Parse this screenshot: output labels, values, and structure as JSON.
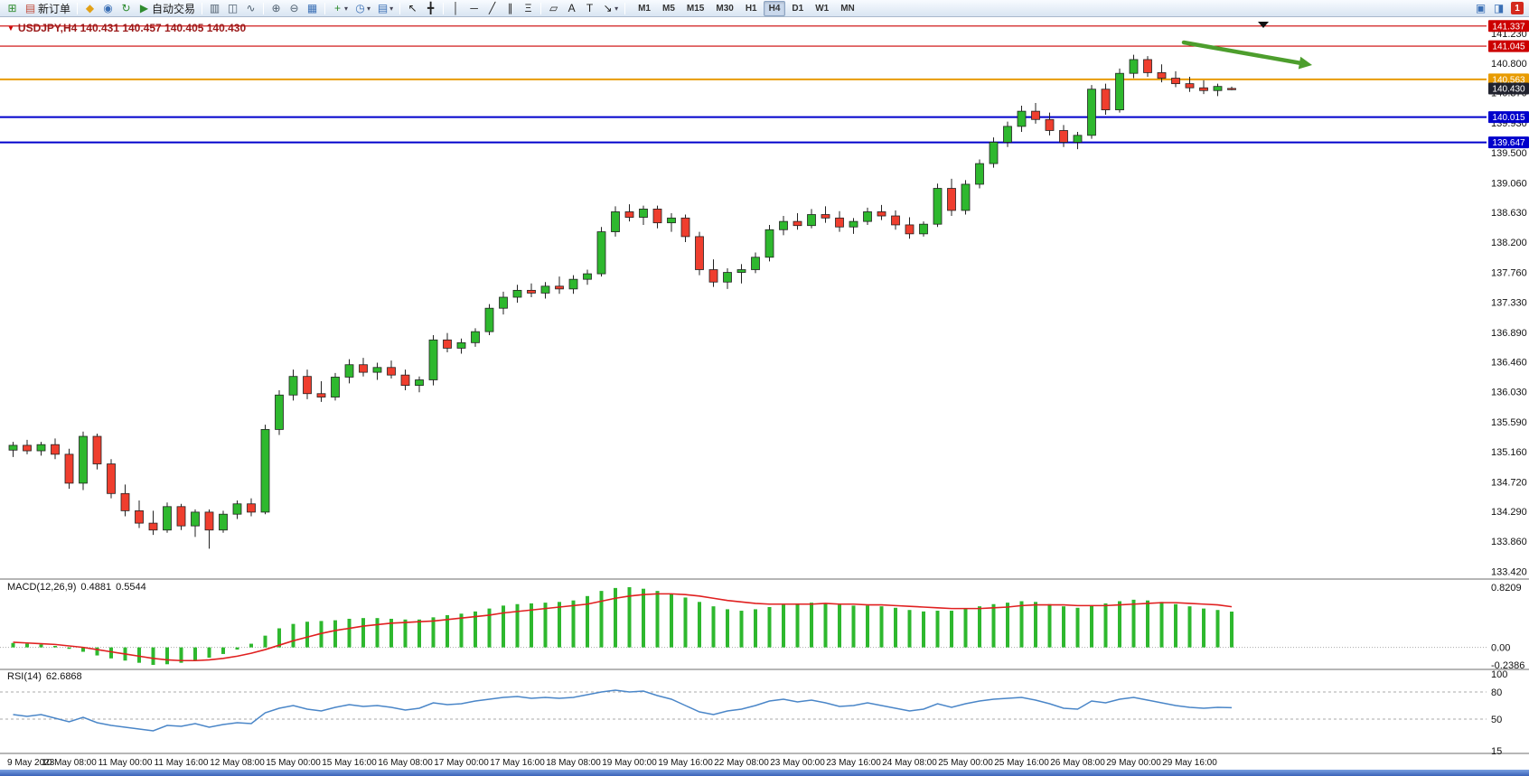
{
  "toolbar": {
    "dropdown_glyph": "▾",
    "items": [
      {
        "t": "ico",
        "name": "new-chart-button",
        "icon": "new-chart-icon",
        "glyph": "⊞",
        "color": "#2e8b2e"
      },
      {
        "t": "btn",
        "name": "new-order-button",
        "icon": "new-order-icon",
        "glyph": "▤",
        "color": "#c04a3a",
        "label": "新订单"
      },
      {
        "t": "sep"
      },
      {
        "t": "ico",
        "name": "metaeditor-button",
        "icon": "metaeditor-icon",
        "glyph": "◆",
        "color": "#e2a117"
      },
      {
        "t": "ico",
        "name": "navigator-button",
        "icon": "navigator-icon",
        "glyph": "◉",
        "color": "#3a6fb5"
      },
      {
        "t": "ico",
        "name": "refresh-button",
        "icon": "refresh-icon",
        "glyph": "↻",
        "color": "#2e8b2e"
      },
      {
        "t": "btn",
        "name": "autotrading-button",
        "icon": "autotrading-icon",
        "glyph": "▶",
        "color": "#2e8b2e",
        "label": "自动交易"
      },
      {
        "t": "sep"
      },
      {
        "t": "ico",
        "name": "bar-chart-button",
        "icon": "bar-chart-icon",
        "glyph": "▥",
        "color": "#50606f"
      },
      {
        "t": "ico",
        "name": "candlestick-chart-button",
        "icon": "candlestick-chart-icon",
        "glyph": "◫",
        "color": "#50606f"
      },
      {
        "t": "ico",
        "name": "line-chart-button",
        "icon": "line-chart-icon",
        "glyph": "∿",
        "color": "#50606f"
      },
      {
        "t": "sep"
      },
      {
        "t": "ico",
        "name": "zoom-in-button",
        "icon": "zoom-in-icon",
        "glyph": "⊕",
        "color": "#50606f"
      },
      {
        "t": "ico",
        "name": "zoom-out-button",
        "icon": "zoom-out-icon",
        "glyph": "⊖",
        "color": "#50606f"
      },
      {
        "t": "ico",
        "name": "tile-windows-button",
        "icon": "tile-windows-icon",
        "glyph": "▦",
        "color": "#3a6fb5"
      },
      {
        "t": "sep"
      },
      {
        "t": "drop",
        "name": "indicators-button",
        "icon": "indicators-icon",
        "glyph": "+",
        "color": "#2e8b2e"
      },
      {
        "t": "drop",
        "name": "periods-button",
        "icon": "clock-icon",
        "glyph": "◷",
        "color": "#3a6fb5"
      },
      {
        "t": "drop",
        "name": "templates-button",
        "icon": "template-icon",
        "glyph": "▤",
        "color": "#3a6fb5"
      },
      {
        "t": "sep"
      },
      {
        "t": "ico",
        "name": "cursor-button",
        "icon": "cursor-icon",
        "glyph": "↖",
        "color": "#222222"
      },
      {
        "t": "ico",
        "name": "crosshair-button",
        "icon": "crosshair-icon",
        "glyph": "╋",
        "color": "#222222"
      },
      {
        "t": "sep"
      },
      {
        "t": "ico",
        "name": "vertical-line-button",
        "icon": "vertical-line-icon",
        "glyph": "│",
        "color": "#222222"
      },
      {
        "t": "ico",
        "name": "horizontal-line-button",
        "icon": "horizontal-line-icon",
        "glyph": "─",
        "color": "#222222"
      },
      {
        "t": "ico",
        "name": "trendline-button",
        "icon": "trendline-icon",
        "glyph": "╱",
        "color": "#222222"
      },
      {
        "t": "ico",
        "name": "channel-button",
        "icon": "channel-icon",
        "glyph": "∥",
        "color": "#222222"
      },
      {
        "t": "ico",
        "name": "fibonacci-button",
        "icon": "fibonacci-icon",
        "glyph": "Ξ",
        "color": "#222222"
      },
      {
        "t": "sep"
      },
      {
        "t": "ico",
        "name": "shapes-button",
        "icon": "shapes-icon",
        "glyph": "▱",
        "color": "#222222"
      },
      {
        "t": "ico",
        "name": "text-button",
        "icon": "text-icon",
        "glyph": "A",
        "color": "#222222"
      },
      {
        "t": "ico",
        "name": "text-label-button",
        "icon": "text-label-icon",
        "glyph": "T",
        "color": "#222222"
      },
      {
        "t": "drop",
        "name": "arrows-button",
        "icon": "arrow-tool-icon",
        "glyph": "↘",
        "color": "#222222"
      },
      {
        "t": "sep"
      }
    ],
    "timeframes": [
      "M1",
      "M5",
      "M15",
      "M30",
      "H1",
      "H4",
      "D1",
      "W1",
      "MN"
    ],
    "active_timeframe": "H4",
    "right_items": [
      {
        "name": "charts-toggle-button",
        "icon": "charts-icon",
        "glyph": "▣",
        "color": "#3a6fb5"
      },
      {
        "name": "window-list-button",
        "icon": "window-icon",
        "glyph": "◨",
        "color": "#3a6fb5"
      }
    ],
    "badge_count": "1"
  },
  "chart": {
    "marker_glyph": "▼",
    "title": "USDJPY,H4 140.431 140.457 140.405 140.430",
    "symbol": "USDJPY",
    "period": "H4",
    "ohlc": {
      "open": "140.431",
      "high": "140.457",
      "low": "140.405",
      "close": "140.430"
    },
    "price_axis_labels": [
      "141.230",
      "140.800",
      "140.370",
      "139.930",
      "139.500",
      "139.060",
      "138.630",
      "138.200",
      "137.760",
      "137.330",
      "136.890",
      "136.460",
      "136.030",
      "135.590",
      "135.160",
      "134.720",
      "134.290",
      "133.860",
      "133.420"
    ],
    "levels": [
      {
        "name": "resistance-line-1",
        "price": 141.337,
        "label": "141.337",
        "color": "#cc0000",
        "width": 1.2,
        "line": true
      },
      {
        "name": "resistance-line-2",
        "price": 141.045,
        "label": "141.045",
        "color": "#cc0000",
        "width": 1.2,
        "line": true
      },
      {
        "name": "orange-level-line",
        "price": 140.563,
        "label": "140.563",
        "color": "#e89b00",
        "width": 2,
        "line": true
      },
      {
        "name": "bid-price",
        "price": 140.43,
        "label": "140.430",
        "color": "#20222e",
        "width": 0,
        "line": false
      },
      {
        "name": "support-line-1",
        "price": 140.015,
        "label": "140.015",
        "color": "#0000cc",
        "width": 2,
        "line": true
      },
      {
        "name": "support-line-2",
        "price": 139.647,
        "label": "139.647",
        "color": "#0000cc",
        "width": 2,
        "line": true
      }
    ],
    "time_axis_labels": [
      "9 May 2023",
      "10 May 08:00",
      "11 May 00:00",
      "11 May 16:00",
      "12 May 08:00",
      "15 May 00:00",
      "15 May 16:00",
      "16 May 08:00",
      "17 May 00:00",
      "17 May 16:00",
      "18 May 08:00",
      "19 May 00:00",
      "19 May 16:00",
      "22 May 08:00",
      "23 May 00:00",
      "23 May 16:00",
      "24 May 08:00",
      "25 May 00:00",
      "25 May 16:00",
      "26 May 08:00",
      "29 May 00:00",
      "29 May 16:00"
    ],
    "annotation": {
      "type": "arrow",
      "direction": "down-right",
      "color": "#4d9e2d"
    }
  },
  "macd_panel": {
    "label": "MACD(12,26,9)",
    "value_main": "0.4881",
    "value_signal": "0.5544",
    "axis_labels": [
      "0.8209",
      "0.00",
      "-0.2386"
    ]
  },
  "rsi_panel": {
    "label": "RSI(14)",
    "value": "62.6868",
    "axis_labels": [
      "100",
      "80",
      "50",
      "15"
    ],
    "level_lines": [
      80,
      50
    ]
  },
  "colors": {
    "bull": "#2eb82e",
    "bear": "#ef3e2e",
    "wick": "#222222",
    "macd_histogram": "#2eb82e",
    "macd_signal": "#e02020",
    "rsi_line": "#4a86c8",
    "axis_text": "#111111"
  },
  "chart_data": {
    "type": "candlestick",
    "symbol": "USDJPY",
    "timeframe": "H4",
    "date_range": "9 May 2023 - 29 May 2023",
    "price_range": [
      133.42,
      141.23
    ],
    "horizontal_levels": [
      141.337,
      141.045,
      140.563,
      140.015,
      139.647
    ],
    "bid": 140.43,
    "candles": [
      [
        135.18,
        135.3,
        135.08,
        135.25
      ],
      [
        135.25,
        135.33,
        135.12,
        135.17
      ],
      [
        135.17,
        135.3,
        135.1,
        135.26
      ],
      [
        135.26,
        135.35,
        135.05,
        135.12
      ],
      [
        135.12,
        135.2,
        134.62,
        134.7
      ],
      [
        134.7,
        135.45,
        134.6,
        135.38
      ],
      [
        135.38,
        135.42,
        134.9,
        134.98
      ],
      [
        134.98,
        135.05,
        134.48,
        134.55
      ],
      [
        134.55,
        134.68,
        134.22,
        134.3
      ],
      [
        134.3,
        134.45,
        134.05,
        134.12
      ],
      [
        134.12,
        134.3,
        133.95,
        134.02
      ],
      [
        134.02,
        134.42,
        133.98,
        134.36
      ],
      [
        134.36,
        134.4,
        134.02,
        134.08
      ],
      [
        134.08,
        134.32,
        133.92,
        134.28
      ],
      [
        134.28,
        134.32,
        133.75,
        134.02
      ],
      [
        134.02,
        134.3,
        133.98,
        134.25
      ],
      [
        134.25,
        134.45,
        134.18,
        134.4
      ],
      [
        134.4,
        134.48,
        134.22,
        134.28
      ],
      [
        134.28,
        135.55,
        134.25,
        135.48
      ],
      [
        135.48,
        136.05,
        135.4,
        135.98
      ],
      [
        135.98,
        136.35,
        135.9,
        136.25
      ],
      [
        136.25,
        136.35,
        135.92,
        136.0
      ],
      [
        136.0,
        136.18,
        135.88,
        135.95
      ],
      [
        135.95,
        136.3,
        135.9,
        136.24
      ],
      [
        136.24,
        136.5,
        136.15,
        136.42
      ],
      [
        136.42,
        136.52,
        136.25,
        136.31
      ],
      [
        136.31,
        136.45,
        136.2,
        136.38
      ],
      [
        136.38,
        136.48,
        136.22,
        136.27
      ],
      [
        136.27,
        136.35,
        136.05,
        136.12
      ],
      [
        136.12,
        136.25,
        136.02,
        136.2
      ],
      [
        136.2,
        136.85,
        136.12,
        136.78
      ],
      [
        136.78,
        136.88,
        136.6,
        136.66
      ],
      [
        136.66,
        136.8,
        136.58,
        136.74
      ],
      [
        136.74,
        136.95,
        136.68,
        136.9
      ],
      [
        136.9,
        137.3,
        136.85,
        137.24
      ],
      [
        137.24,
        137.48,
        137.15,
        137.4
      ],
      [
        137.4,
        137.58,
        137.32,
        137.5
      ],
      [
        137.5,
        137.6,
        137.4,
        137.46
      ],
      [
        137.46,
        137.62,
        137.38,
        137.56
      ],
      [
        137.56,
        137.7,
        137.45,
        137.52
      ],
      [
        137.52,
        137.72,
        137.45,
        137.66
      ],
      [
        137.66,
        137.8,
        137.58,
        137.74
      ],
      [
        137.74,
        138.42,
        137.7,
        138.35
      ],
      [
        138.35,
        138.72,
        138.28,
        138.64
      ],
      [
        138.64,
        138.75,
        138.5,
        138.56
      ],
      [
        138.56,
        138.73,
        138.45,
        138.68
      ],
      [
        138.68,
        138.73,
        138.4,
        138.48
      ],
      [
        138.48,
        138.62,
        138.35,
        138.55
      ],
      [
        138.55,
        138.6,
        138.2,
        138.28
      ],
      [
        138.28,
        138.35,
        137.72,
        137.8
      ],
      [
        137.8,
        137.95,
        137.55,
        137.62
      ],
      [
        137.62,
        137.82,
        137.52,
        137.76
      ],
      [
        137.76,
        137.88,
        137.6,
        137.8
      ],
      [
        137.8,
        138.05,
        137.75,
        137.98
      ],
      [
        137.98,
        138.45,
        137.92,
        138.38
      ],
      [
        138.38,
        138.58,
        138.3,
        138.5
      ],
      [
        138.5,
        138.62,
        138.38,
        138.44
      ],
      [
        138.44,
        138.68,
        138.4,
        138.6
      ],
      [
        138.6,
        138.72,
        138.48,
        138.55
      ],
      [
        138.55,
        138.65,
        138.35,
        138.42
      ],
      [
        138.42,
        138.55,
        138.32,
        138.5
      ],
      [
        138.5,
        138.7,
        138.45,
        138.64
      ],
      [
        138.64,
        138.74,
        138.52,
        138.58
      ],
      [
        138.58,
        138.66,
        138.38,
        138.45
      ],
      [
        138.45,
        138.56,
        138.25,
        138.32
      ],
      [
        138.32,
        138.5,
        138.28,
        138.46
      ],
      [
        138.46,
        139.05,
        138.42,
        138.98
      ],
      [
        138.98,
        139.12,
        138.58,
        138.66
      ],
      [
        138.66,
        139.1,
        138.6,
        139.04
      ],
      [
        139.04,
        139.4,
        138.98,
        139.34
      ],
      [
        139.34,
        139.72,
        139.28,
        139.65
      ],
      [
        139.65,
        139.95,
        139.58,
        139.88
      ],
      [
        139.88,
        140.18,
        139.8,
        140.1
      ],
      [
        140.1,
        140.22,
        139.92,
        139.98
      ],
      [
        139.98,
        140.08,
        139.75,
        139.82
      ],
      [
        139.82,
        139.9,
        139.58,
        139.65
      ],
      [
        139.65,
        139.8,
        139.55,
        139.75
      ],
      [
        139.75,
        140.48,
        139.7,
        140.42
      ],
      [
        140.42,
        140.5,
        140.05,
        140.12
      ],
      [
        140.12,
        140.72,
        140.08,
        140.65
      ],
      [
        140.65,
        140.92,
        140.58,
        140.85
      ],
      [
        140.85,
        140.9,
        140.6,
        140.66
      ],
      [
        140.66,
        140.78,
        140.52,
        140.58
      ],
      [
        140.58,
        140.68,
        140.45,
        140.5
      ],
      [
        140.5,
        140.6,
        140.38,
        140.44
      ],
      [
        140.44,
        140.55,
        140.35,
        140.4
      ],
      [
        140.4,
        140.5,
        140.32,
        140.46
      ],
      [
        140.431,
        140.457,
        140.405,
        140.43
      ]
    ],
    "macd": {
      "params": [
        12,
        26,
        9
      ],
      "current_main": 0.4881,
      "current_signal": 0.5544,
      "range": [
        -0.2386,
        0.8209
      ],
      "histogram": [
        0.06,
        0.05,
        0.04,
        0.02,
        -0.02,
        -0.06,
        -0.11,
        -0.15,
        -0.18,
        -0.21,
        -0.2386,
        -0.23,
        -0.21,
        -0.18,
        -0.14,
        -0.09,
        -0.03,
        0.05,
        0.16,
        0.26,
        0.32,
        0.35,
        0.36,
        0.37,
        0.39,
        0.4,
        0.4,
        0.39,
        0.38,
        0.38,
        0.41,
        0.44,
        0.46,
        0.49,
        0.53,
        0.57,
        0.59,
        0.6,
        0.61,
        0.62,
        0.64,
        0.7,
        0.77,
        0.81,
        0.8209,
        0.8,
        0.77,
        0.73,
        0.68,
        0.62,
        0.56,
        0.52,
        0.5,
        0.52,
        0.55,
        0.58,
        0.6,
        0.61,
        0.6,
        0.58,
        0.57,
        0.57,
        0.56,
        0.54,
        0.51,
        0.49,
        0.5,
        0.5,
        0.53,
        0.56,
        0.59,
        0.61,
        0.63,
        0.62,
        0.59,
        0.56,
        0.54,
        0.57,
        0.6,
        0.63,
        0.65,
        0.64,
        0.62,
        0.59,
        0.56,
        0.53,
        0.51,
        0.4881
      ],
      "signal": [
        0.07,
        0.06,
        0.05,
        0.04,
        0.02,
        0.0,
        -0.03,
        -0.06,
        -0.09,
        -0.12,
        -0.15,
        -0.17,
        -0.18,
        -0.18,
        -0.17,
        -0.15,
        -0.12,
        -0.08,
        -0.03,
        0.03,
        0.09,
        0.14,
        0.19,
        0.23,
        0.26,
        0.29,
        0.31,
        0.33,
        0.34,
        0.35,
        0.36,
        0.38,
        0.4,
        0.42,
        0.44,
        0.47,
        0.49,
        0.51,
        0.53,
        0.55,
        0.57,
        0.59,
        0.63,
        0.67,
        0.7,
        0.72,
        0.73,
        0.73,
        0.72,
        0.7,
        0.67,
        0.64,
        0.62,
        0.6,
        0.59,
        0.59,
        0.59,
        0.59,
        0.6,
        0.59,
        0.59,
        0.58,
        0.58,
        0.57,
        0.56,
        0.55,
        0.54,
        0.53,
        0.53,
        0.53,
        0.54,
        0.55,
        0.57,
        0.58,
        0.58,
        0.58,
        0.57,
        0.57,
        0.57,
        0.58,
        0.59,
        0.6,
        0.61,
        0.61,
        0.6,
        0.59,
        0.58,
        0.5544
      ]
    },
    "rsi": {
      "period": 14,
      "current": 62.6868,
      "scale": [
        15,
        100
      ],
      "values": [
        55,
        53,
        55,
        51,
        47,
        52,
        46,
        43,
        41,
        39,
        37,
        43,
        42,
        45,
        41,
        44,
        46,
        45,
        57,
        62,
        65,
        61,
        59,
        63,
        66,
        64,
        65,
        63,
        60,
        62,
        68,
        66,
        67,
        70,
        72,
        74,
        75,
        73,
        74,
        73,
        74,
        77,
        80,
        82,
        80,
        81,
        76,
        72,
        65,
        58,
        55,
        59,
        61,
        65,
        70,
        72,
        69,
        71,
        68,
        64,
        65,
        68,
        65,
        62,
        59,
        61,
        67,
        63,
        67,
        70,
        72,
        73,
        74,
        71,
        67,
        62,
        61,
        70,
        68,
        72,
        74,
        71,
        68,
        65,
        63,
        62,
        63,
        62.6868
      ]
    }
  }
}
